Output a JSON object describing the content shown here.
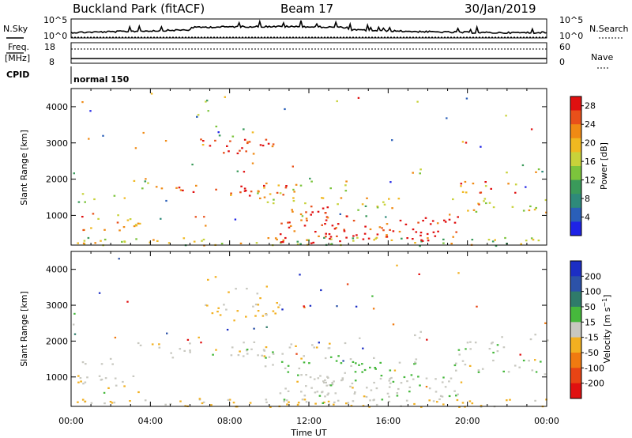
{
  "header": {
    "station": "Buckland Park (fitACF)",
    "beam": "Beam 17",
    "date": "30/Jan/2019"
  },
  "noise_panel": {
    "left_label": "N.Sky",
    "right_label": "N.Search",
    "left_ticks": [
      "10^5",
      "10^0"
    ],
    "right_ticks": [
      "10^5",
      "10^0"
    ]
  },
  "freq_panel": {
    "left_label_1": "Freq.",
    "left_label_2": "[MHz]",
    "left_ticks": [
      "18",
      "8"
    ],
    "right_label": "Nave",
    "right_ticks": [
      "60",
      "0"
    ]
  },
  "cpid": {
    "label": "CPID",
    "mode": "normal 150"
  },
  "chart_data": [
    {
      "type": "heatmap",
      "title": "",
      "xlabel": "Time UT",
      "ylabel": "Slant Range [km]",
      "xlim": [
        "00:00",
        "00:00"
      ],
      "ylim": [
        180,
        4500
      ],
      "x_ticks": [
        "00:00",
        "04:00",
        "08:00",
        "12:00",
        "16:00",
        "20:00",
        "00:00"
      ],
      "y_ticks": [
        1000,
        2000,
        3000,
        4000
      ],
      "colorbar": {
        "label": "Power [dB]",
        "ticks": [
          4,
          8,
          12,
          16,
          20,
          24,
          28
        ],
        "range": [
          0,
          30
        ],
        "colors": [
          "#1e22e6",
          "#2a5fb8",
          "#2e8a7a",
          "#3a9a5a",
          "#7cc43c",
          "#c8d23a",
          "#f0b820",
          "#f08a14",
          "#e8501a",
          "#e01010"
        ]
      },
      "regions": [
        {
          "t": [
            0.0,
            24.0
          ],
          "r": [
            180,
            420
          ],
          "level": 0.55,
          "density": 0.55
        },
        {
          "t": [
            0.0,
            3.5
          ],
          "r": [
            600,
            1100
          ],
          "level": 0.7,
          "density": 0.45
        },
        {
          "t": [
            0.3,
            2.3
          ],
          "r": [
            1350,
            1700
          ],
          "level": 0.45,
          "density": 0.35
        },
        {
          "t": [
            3.0,
            6.0
          ],
          "r": [
            1750,
            2000
          ],
          "level": 0.55,
          "density": 0.35
        },
        {
          "t": [
            5.0,
            11.0
          ],
          "r": [
            1550,
            1850
          ],
          "level": 0.85,
          "density": 0.55
        },
        {
          "t": [
            6.5,
            10.5
          ],
          "r": [
            2700,
            3150
          ],
          "level": 0.9,
          "density": 0.6
        },
        {
          "t": [
            7.2,
            9.5
          ],
          "r": [
            3200,
            3500
          ],
          "level": 0.45,
          "density": 0.3
        },
        {
          "t": [
            6.2,
            7.4
          ],
          "r": [
            3650,
            3900
          ],
          "level": 0.35,
          "density": 0.3
        },
        {
          "t": [
            9.0,
            14.0
          ],
          "r": [
            1300,
            2000
          ],
          "level": 0.55,
          "density": 0.35
        },
        {
          "t": [
            10.5,
            13.0
          ],
          "r": [
            250,
            1300
          ],
          "level": 0.95,
          "density": 0.6
        },
        {
          "t": [
            12.5,
            19.5
          ],
          "r": [
            300,
            1000
          ],
          "level": 0.95,
          "density": 0.6
        },
        {
          "t": [
            14.0,
            16.5
          ],
          "r": [
            1000,
            1600
          ],
          "level": 0.55,
          "density": 0.35
        },
        {
          "t": [
            17.0,
            17.8
          ],
          "r": [
            2050,
            2450
          ],
          "level": 0.6,
          "density": 0.4
        },
        {
          "t": [
            19.2,
            24.0
          ],
          "r": [
            1100,
            1500
          ],
          "level": 0.65,
          "density": 0.45
        },
        {
          "t": [
            19.5,
            22.5
          ],
          "r": [
            1600,
            2000
          ],
          "level": 0.8,
          "density": 0.5
        },
        {
          "t": [
            21.5,
            24.0
          ],
          "r": [
            2000,
            2300
          ],
          "level": 0.5,
          "density": 0.25
        }
      ]
    },
    {
      "type": "heatmap",
      "title": "",
      "xlabel": "Time UT",
      "ylabel": "Slant Range [km]",
      "xlim": [
        "00:00",
        "00:00"
      ],
      "ylim": [
        180,
        4500
      ],
      "x_ticks": [
        "00:00",
        "04:00",
        "08:00",
        "12:00",
        "16:00",
        "20:00",
        "00:00"
      ],
      "y_ticks": [
        1000,
        2000,
        3000,
        4000
      ],
      "colorbar": {
        "label": "Velocity [m s^-1]",
        "ticks": [
          200,
          100,
          50,
          15,
          -15,
          -50,
          -100,
          -200
        ],
        "range": [
          -250,
          250
        ],
        "colors": [
          "#1c2ec4",
          "#2c52a8",
          "#2f7b6a",
          "#46b83c",
          "#c8c8c0",
          "#f2b020",
          "#f07a10",
          "#e84414",
          "#e01010"
        ]
      },
      "regions": [
        {
          "t": [
            0.0,
            24.0
          ],
          "r": [
            180,
            420
          ],
          "vel": -40,
          "density": 0.55
        },
        {
          "t": [
            0.0,
            3.5
          ],
          "r": [
            600,
            1100
          ],
          "vel": -15,
          "density": 0.45
        },
        {
          "t": [
            0.3,
            2.3
          ],
          "r": [
            1350,
            1700
          ],
          "vel": 0,
          "density": 0.35
        },
        {
          "t": [
            3.0,
            6.0
          ],
          "r": [
            1750,
            2000
          ],
          "vel": 0,
          "density": 0.35
        },
        {
          "t": [
            5.0,
            11.0
          ],
          "r": [
            1550,
            1850
          ],
          "vel": 0,
          "density": 0.55
        },
        {
          "t": [
            6.5,
            10.5
          ],
          "r": [
            2700,
            3150
          ],
          "vel": -40,
          "density": 0.6
        },
        {
          "t": [
            7.2,
            9.5
          ],
          "r": [
            3200,
            3500
          ],
          "vel": -30,
          "density": 0.3
        },
        {
          "t": [
            6.2,
            7.4
          ],
          "r": [
            3650,
            3900
          ],
          "vel": 0,
          "density": 0.3
        },
        {
          "t": [
            9.0,
            14.0
          ],
          "r": [
            1300,
            2000
          ],
          "vel": 0,
          "density": 0.35
        },
        {
          "t": [
            10.5,
            13.0
          ],
          "r": [
            250,
            1300
          ],
          "vel": 0,
          "density": 0.6
        },
        {
          "t": [
            12.5,
            19.5
          ],
          "r": [
            300,
            1000
          ],
          "vel": 0,
          "density": 0.6
        },
        {
          "t": [
            13.0,
            17.5
          ],
          "r": [
            1000,
            1600
          ],
          "vel": 45,
          "density": 0.45
        },
        {
          "t": [
            17.0,
            17.8
          ],
          "r": [
            2050,
            2450
          ],
          "vel": 0,
          "density": 0.4
        },
        {
          "t": [
            19.2,
            24.0
          ],
          "r": [
            1100,
            1500
          ],
          "vel": 0,
          "density": 0.45
        },
        {
          "t": [
            19.5,
            22.5
          ],
          "r": [
            1600,
            2000
          ],
          "vel": 0,
          "density": 0.5
        },
        {
          "t": [
            21.5,
            24.0
          ],
          "r": [
            2000,
            2300
          ],
          "vel": 0,
          "density": 0.25
        }
      ]
    }
  ]
}
